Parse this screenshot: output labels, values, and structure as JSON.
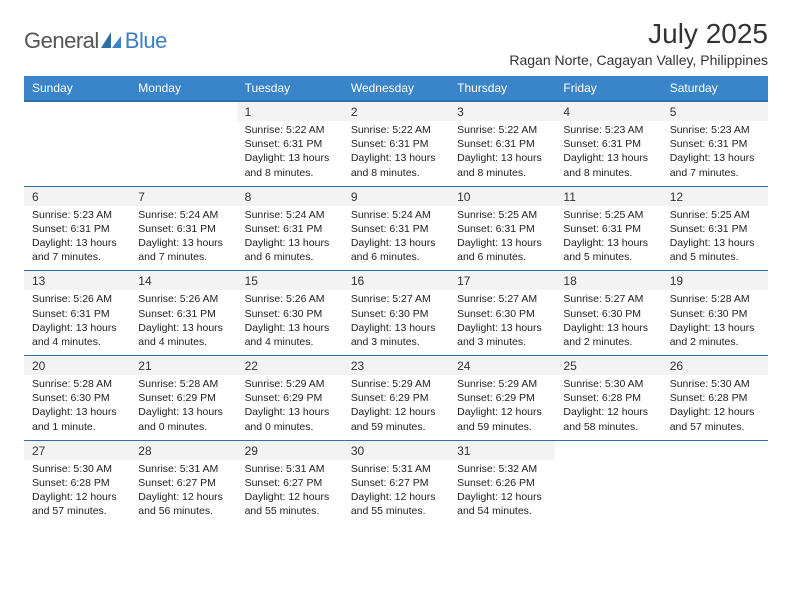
{
  "brand": {
    "general": "General",
    "blue": "Blue"
  },
  "title": "July 2025",
  "subtitle": "Ragan Norte, Cagayan Valley, Philippines",
  "colors": {
    "header_bg": "#3a85c9",
    "header_text": "#ffffff",
    "dayrow_bg": "#f3f3f3",
    "border": "#2f6fa8",
    "logo_blue": "#3a7fc4",
    "logo_gray": "#555555",
    "body_text": "#222222",
    "page_bg": "#ffffff"
  },
  "weekdays": [
    "Sunday",
    "Monday",
    "Tuesday",
    "Wednesday",
    "Thursday",
    "Friday",
    "Saturday"
  ],
  "weeks": [
    [
      null,
      null,
      {
        "n": "1",
        "sr": "5:22 AM",
        "ss": "6:31 PM",
        "dl": "13 hours and 8 minutes."
      },
      {
        "n": "2",
        "sr": "5:22 AM",
        "ss": "6:31 PM",
        "dl": "13 hours and 8 minutes."
      },
      {
        "n": "3",
        "sr": "5:22 AM",
        "ss": "6:31 PM",
        "dl": "13 hours and 8 minutes."
      },
      {
        "n": "4",
        "sr": "5:23 AM",
        "ss": "6:31 PM",
        "dl": "13 hours and 8 minutes."
      },
      {
        "n": "5",
        "sr": "5:23 AM",
        "ss": "6:31 PM",
        "dl": "13 hours and 7 minutes."
      }
    ],
    [
      {
        "n": "6",
        "sr": "5:23 AM",
        "ss": "6:31 PM",
        "dl": "13 hours and 7 minutes."
      },
      {
        "n": "7",
        "sr": "5:24 AM",
        "ss": "6:31 PM",
        "dl": "13 hours and 7 minutes."
      },
      {
        "n": "8",
        "sr": "5:24 AM",
        "ss": "6:31 PM",
        "dl": "13 hours and 6 minutes."
      },
      {
        "n": "9",
        "sr": "5:24 AM",
        "ss": "6:31 PM",
        "dl": "13 hours and 6 minutes."
      },
      {
        "n": "10",
        "sr": "5:25 AM",
        "ss": "6:31 PM",
        "dl": "13 hours and 6 minutes."
      },
      {
        "n": "11",
        "sr": "5:25 AM",
        "ss": "6:31 PM",
        "dl": "13 hours and 5 minutes."
      },
      {
        "n": "12",
        "sr": "5:25 AM",
        "ss": "6:31 PM",
        "dl": "13 hours and 5 minutes."
      }
    ],
    [
      {
        "n": "13",
        "sr": "5:26 AM",
        "ss": "6:31 PM",
        "dl": "13 hours and 4 minutes."
      },
      {
        "n": "14",
        "sr": "5:26 AM",
        "ss": "6:31 PM",
        "dl": "13 hours and 4 minutes."
      },
      {
        "n": "15",
        "sr": "5:26 AM",
        "ss": "6:30 PM",
        "dl": "13 hours and 4 minutes."
      },
      {
        "n": "16",
        "sr": "5:27 AM",
        "ss": "6:30 PM",
        "dl": "13 hours and 3 minutes."
      },
      {
        "n": "17",
        "sr": "5:27 AM",
        "ss": "6:30 PM",
        "dl": "13 hours and 3 minutes."
      },
      {
        "n": "18",
        "sr": "5:27 AM",
        "ss": "6:30 PM",
        "dl": "13 hours and 2 minutes."
      },
      {
        "n": "19",
        "sr": "5:28 AM",
        "ss": "6:30 PM",
        "dl": "13 hours and 2 minutes."
      }
    ],
    [
      {
        "n": "20",
        "sr": "5:28 AM",
        "ss": "6:30 PM",
        "dl": "13 hours and 1 minute."
      },
      {
        "n": "21",
        "sr": "5:28 AM",
        "ss": "6:29 PM",
        "dl": "13 hours and 0 minutes."
      },
      {
        "n": "22",
        "sr": "5:29 AM",
        "ss": "6:29 PM",
        "dl": "13 hours and 0 minutes."
      },
      {
        "n": "23",
        "sr": "5:29 AM",
        "ss": "6:29 PM",
        "dl": "12 hours and 59 minutes."
      },
      {
        "n": "24",
        "sr": "5:29 AM",
        "ss": "6:29 PM",
        "dl": "12 hours and 59 minutes."
      },
      {
        "n": "25",
        "sr": "5:30 AM",
        "ss": "6:28 PM",
        "dl": "12 hours and 58 minutes."
      },
      {
        "n": "26",
        "sr": "5:30 AM",
        "ss": "6:28 PM",
        "dl": "12 hours and 57 minutes."
      }
    ],
    [
      {
        "n": "27",
        "sr": "5:30 AM",
        "ss": "6:28 PM",
        "dl": "12 hours and 57 minutes."
      },
      {
        "n": "28",
        "sr": "5:31 AM",
        "ss": "6:27 PM",
        "dl": "12 hours and 56 minutes."
      },
      {
        "n": "29",
        "sr": "5:31 AM",
        "ss": "6:27 PM",
        "dl": "12 hours and 55 minutes."
      },
      {
        "n": "30",
        "sr": "5:31 AM",
        "ss": "6:27 PM",
        "dl": "12 hours and 55 minutes."
      },
      {
        "n": "31",
        "sr": "5:32 AM",
        "ss": "6:26 PM",
        "dl": "12 hours and 54 minutes."
      },
      null,
      null
    ]
  ],
  "labels": {
    "sunrise": "Sunrise:",
    "sunset": "Sunset:",
    "daylight": "Daylight:"
  }
}
